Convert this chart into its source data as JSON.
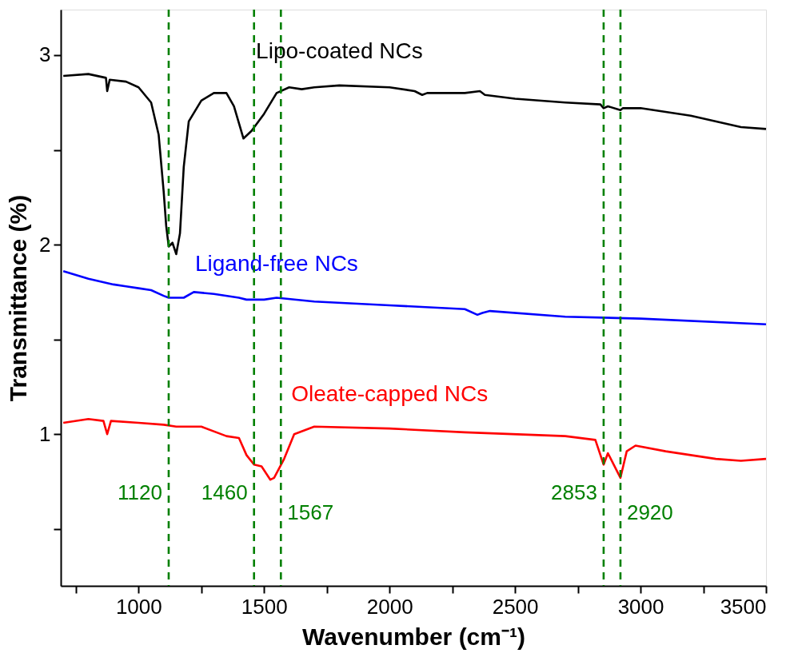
{
  "chart_data": {
    "type": "line",
    "xlabel": "Wavenumber (cm⁻¹)",
    "ylabel": "Transmittance (%)",
    "xlim": [
      690,
      3500
    ],
    "xticks": [
      {
        "value": 750,
        "label": null
      },
      1000,
      {
        "value": 1250,
        "label": null
      },
      1500,
      {
        "value": 1750,
        "label": null
      },
      2000,
      {
        "value": 2250,
        "label": null
      },
      2500,
      {
        "value": 2750,
        "label": null
      },
      3000,
      {
        "value": 3250,
        "label": null
      },
      3500
    ],
    "ylim": [
      0.2,
      3.24
    ],
    "yticks": [
      {
        "value": 0.5,
        "label": null
      },
      1,
      {
        "value": 1.5,
        "label": null
      },
      2,
      {
        "value": 2.5,
        "label": null
      },
      3
    ],
    "grid": false,
    "line_style": "solid",
    "marker": "none",
    "series": [
      {
        "name": "Lipo-coated NCs",
        "color": "#000000",
        "x": [
          700,
          800,
          870,
          875,
          885,
          950,
          1000,
          1050,
          1080,
          1100,
          1110,
          1120,
          1135,
          1150,
          1165,
          1180,
          1200,
          1250,
          1300,
          1350,
          1380,
          1418,
          1450,
          1500,
          1550,
          1600,
          1650,
          1700,
          1800,
          2000,
          2100,
          2130,
          2150,
          2300,
          2360,
          2380,
          2500,
          2700,
          2840,
          2853,
          2870,
          2920,
          2930,
          3000,
          3200,
          3400,
          3500
        ],
        "values": [
          2.89,
          2.9,
          2.88,
          2.81,
          2.87,
          2.86,
          2.83,
          2.75,
          2.58,
          2.28,
          2.1,
          1.99,
          2.01,
          1.95,
          2.06,
          2.41,
          2.65,
          2.76,
          2.8,
          2.8,
          2.73,
          2.56,
          2.6,
          2.69,
          2.8,
          2.83,
          2.82,
          2.83,
          2.84,
          2.83,
          2.81,
          2.79,
          2.8,
          2.8,
          2.81,
          2.79,
          2.77,
          2.75,
          2.74,
          2.72,
          2.73,
          2.71,
          2.72,
          2.72,
          2.68,
          2.62,
          2.61
        ]
      },
      {
        "name": "Ligand-free NCs",
        "color": "#0000ff",
        "x": [
          700,
          800,
          900,
          950,
          1000,
          1050,
          1100,
          1120,
          1180,
          1220,
          1300,
          1400,
          1430,
          1500,
          1550,
          1700,
          2000,
          2300,
          2350,
          2370,
          2400,
          2700,
          3000,
          3500
        ],
        "values": [
          1.86,
          1.82,
          1.79,
          1.78,
          1.77,
          1.76,
          1.73,
          1.72,
          1.72,
          1.75,
          1.74,
          1.72,
          1.71,
          1.71,
          1.72,
          1.7,
          1.68,
          1.66,
          1.63,
          1.64,
          1.65,
          1.62,
          1.61,
          1.58
        ]
      },
      {
        "name": "Oleate-capped NCs",
        "color": "#ff0000",
        "x": [
          700,
          800,
          860,
          875,
          890,
          1000,
          1100,
          1150,
          1250,
          1350,
          1400,
          1430,
          1460,
          1490,
          1525,
          1540,
          1580,
          1620,
          1700,
          2000,
          2300,
          2700,
          2820,
          2853,
          2870,
          2920,
          2945,
          2980,
          3100,
          3300,
          3400,
          3500
        ],
        "values": [
          1.06,
          1.08,
          1.07,
          1.0,
          1.07,
          1.06,
          1.05,
          1.04,
          1.04,
          0.99,
          0.98,
          0.89,
          0.84,
          0.83,
          0.76,
          0.77,
          0.87,
          1.0,
          1.04,
          1.03,
          1.01,
          0.99,
          0.97,
          0.84,
          0.9,
          0.77,
          0.91,
          0.94,
          0.91,
          0.87,
          0.86,
          0.87
        ]
      }
    ],
    "ref_lines": [
      {
        "axis": "x",
        "value": 1120,
        "label": "1120",
        "color": "#008000",
        "line_style": "dashed"
      },
      {
        "axis": "x",
        "value": 1460,
        "label": "1460",
        "color": "#008000",
        "line_style": "dashed"
      },
      {
        "axis": "x",
        "value": 1567,
        "label": "1567",
        "color": "#008000",
        "line_style": "dashed"
      },
      {
        "axis": "x",
        "value": 2853,
        "label": "2853",
        "color": "#008000",
        "line_style": "dashed"
      },
      {
        "axis": "x",
        "value": 2920,
        "label": "2920",
        "color": "#008000",
        "line_style": "dashed"
      }
    ]
  }
}
